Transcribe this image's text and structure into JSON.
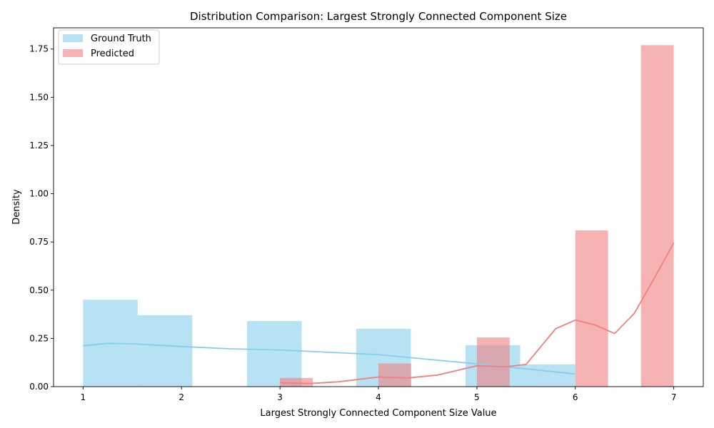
{
  "chart_data": {
    "type": "bar",
    "title": "Distribution Comparison: Largest Strongly Connected Component Size",
    "xlabel": "Largest Strongly Connected Component Size Value",
    "ylabel": "Density",
    "xlim": [
      0.7,
      7.3
    ],
    "ylim": [
      0,
      1.86
    ],
    "xticks": [
      1,
      2,
      3,
      4,
      5,
      6,
      7
    ],
    "yticks": [
      0.0,
      0.25,
      0.5,
      0.75,
      1.0,
      1.25,
      1.5,
      1.75
    ],
    "ytick_labels": [
      "0.00",
      "0.25",
      "0.50",
      "0.75",
      "1.00",
      "1.25",
      "1.50",
      "1.75"
    ],
    "grid": false,
    "legend": "upper-left",
    "series": [
      {
        "name": "Ground Truth",
        "color": "#87CEEB",
        "bars": [
          {
            "x0": 1.0,
            "x1": 1.555,
            "y": 0.45
          },
          {
            "x0": 1.555,
            "x1": 2.11,
            "y": 0.37
          },
          {
            "x0": 2.665,
            "x1": 3.22,
            "y": 0.34
          },
          {
            "x0": 3.775,
            "x1": 4.33,
            "y": 0.3
          },
          {
            "x0": 4.885,
            "x1": 5.44,
            "y": 0.215
          },
          {
            "x0": 5.44,
            "x1": 6.0,
            "y": 0.115
          }
        ],
        "kde": [
          [
            1.0,
            0.212
          ],
          [
            1.25,
            0.224
          ],
          [
            1.5,
            0.222
          ],
          [
            2.0,
            0.208
          ],
          [
            2.5,
            0.196
          ],
          [
            3.0,
            0.19
          ],
          [
            3.5,
            0.178
          ],
          [
            4.0,
            0.166
          ],
          [
            4.5,
            0.142
          ],
          [
            5.0,
            0.118
          ],
          [
            5.5,
            0.092
          ],
          [
            6.0,
            0.066
          ]
        ]
      },
      {
        "name": "Predicted",
        "color": "#F08080",
        "bars": [
          {
            "x0": 3.0,
            "x1": 3.333,
            "y": 0.045
          },
          {
            "x0": 4.0,
            "x1": 4.333,
            "y": 0.12
          },
          {
            "x0": 5.0,
            "x1": 5.333,
            "y": 0.255
          },
          {
            "x0": 6.0,
            "x1": 6.333,
            "y": 0.81
          },
          {
            "x0": 6.667,
            "x1": 7.0,
            "y": 1.77
          }
        ],
        "kde": [
          [
            3.0,
            0.02
          ],
          [
            3.3,
            0.016
          ],
          [
            3.6,
            0.025
          ],
          [
            4.0,
            0.05
          ],
          [
            4.3,
            0.045
          ],
          [
            4.6,
            0.06
          ],
          [
            5.0,
            0.108
          ],
          [
            5.3,
            0.103
          ],
          [
            5.5,
            0.115
          ],
          [
            5.8,
            0.3
          ],
          [
            6.0,
            0.345
          ],
          [
            6.2,
            0.32
          ],
          [
            6.4,
            0.275
          ],
          [
            6.6,
            0.38
          ],
          [
            6.8,
            0.56
          ],
          [
            7.0,
            0.745
          ]
        ]
      }
    ]
  }
}
